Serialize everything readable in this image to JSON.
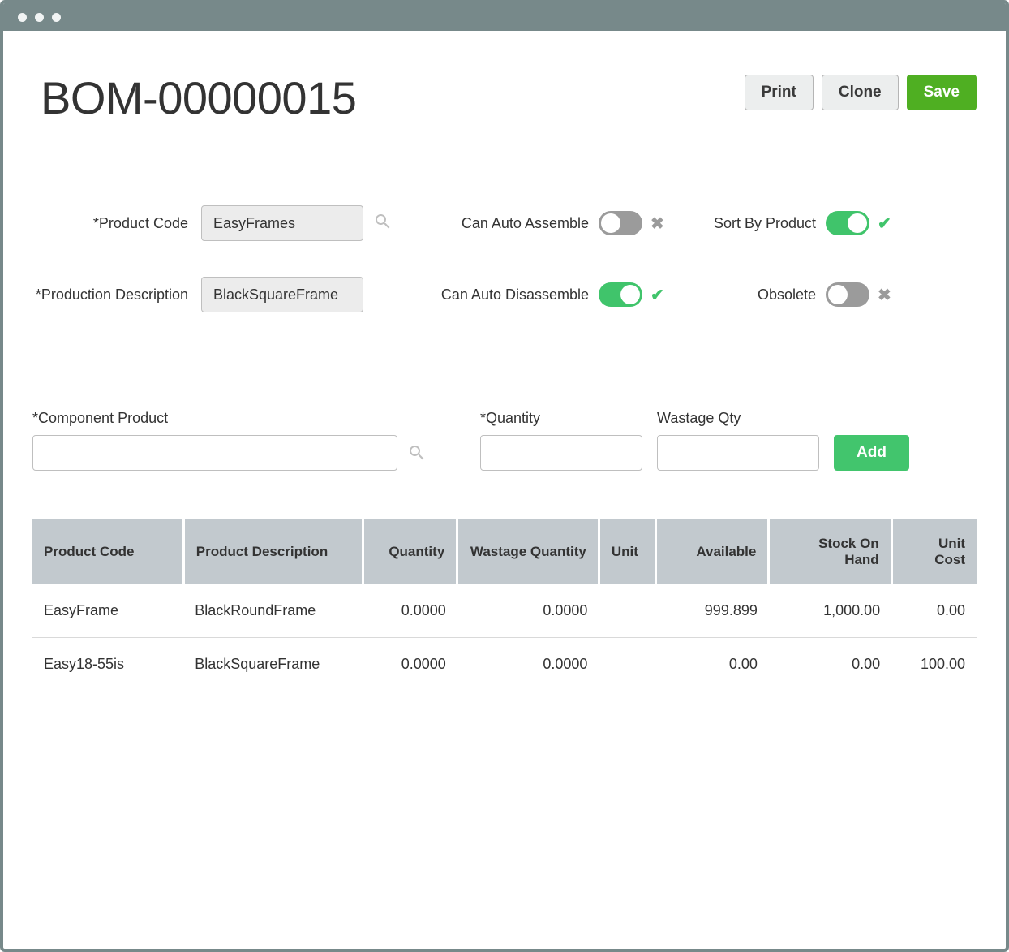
{
  "colors": {
    "chrome": "#77898a",
    "primary_button_bg": "#4faf22",
    "add_button_bg": "#42c56d",
    "switch_on": "#40c46b",
    "switch_off": "#9b9b9b",
    "table_header_bg": "#c2c9ce",
    "input_bg": "#ececec",
    "border": "#bfbfbf",
    "background": "#ffffff",
    "text": "#333333"
  },
  "typography": {
    "title_fontsize": 56,
    "title_weight": 300,
    "body_fontsize": 18,
    "button_fontsize": 19,
    "button_weight": 600,
    "th_fontsize": 17
  },
  "header": {
    "title": "BOM-00000015",
    "buttons": {
      "print": "Print",
      "clone": "Clone",
      "save": "Save"
    }
  },
  "form": {
    "product_code_label": "*Product Code",
    "product_code_value": "EasyFrames",
    "production_description_label": "*Production Description",
    "production_description_value": "BlackSquareFrame",
    "can_auto_assemble_label": "Can Auto Assemble",
    "can_auto_assemble_on": false,
    "can_auto_disassemble_label": "Can Auto Disassemble",
    "can_auto_disassemble_on": true,
    "sort_by_product_label": "Sort By Product",
    "sort_by_product_on": true,
    "obsolete_label": "Obsolete",
    "obsolete_on": false
  },
  "add_line": {
    "component_product_label": "*Component Product",
    "component_product_value": "",
    "quantity_label": "*Quantity",
    "quantity_value": "",
    "wastage_label": "Wastage Qty",
    "wastage_value": "",
    "add_button": "Add"
  },
  "table": {
    "columns": [
      "Product Code",
      "Product Description",
      "Quantity",
      "Wastage Quantity",
      "Unit",
      "Available",
      "Stock On Hand",
      "Unit Cost"
    ],
    "column_align": [
      "left",
      "left",
      "right",
      "right",
      "left",
      "right",
      "right",
      "right"
    ],
    "column_widths_pct": [
      16,
      19,
      10,
      15,
      6,
      12,
      13,
      9
    ],
    "rows": [
      {
        "product_code": "EasyFrame",
        "product_description": "BlackRoundFrame",
        "quantity": "0.0000",
        "wastage_quantity": "0.0000",
        "unit": "",
        "available": "999.899",
        "stock_on_hand": "1,000.00",
        "unit_cost": "0.00"
      },
      {
        "product_code": "Easy18-55is",
        "product_description": "BlackSquareFrame",
        "quantity": "0.0000",
        "wastage_quantity": "0.0000",
        "unit": "",
        "available": "0.00",
        "stock_on_hand": "0.00",
        "unit_cost": "100.00"
      }
    ]
  }
}
